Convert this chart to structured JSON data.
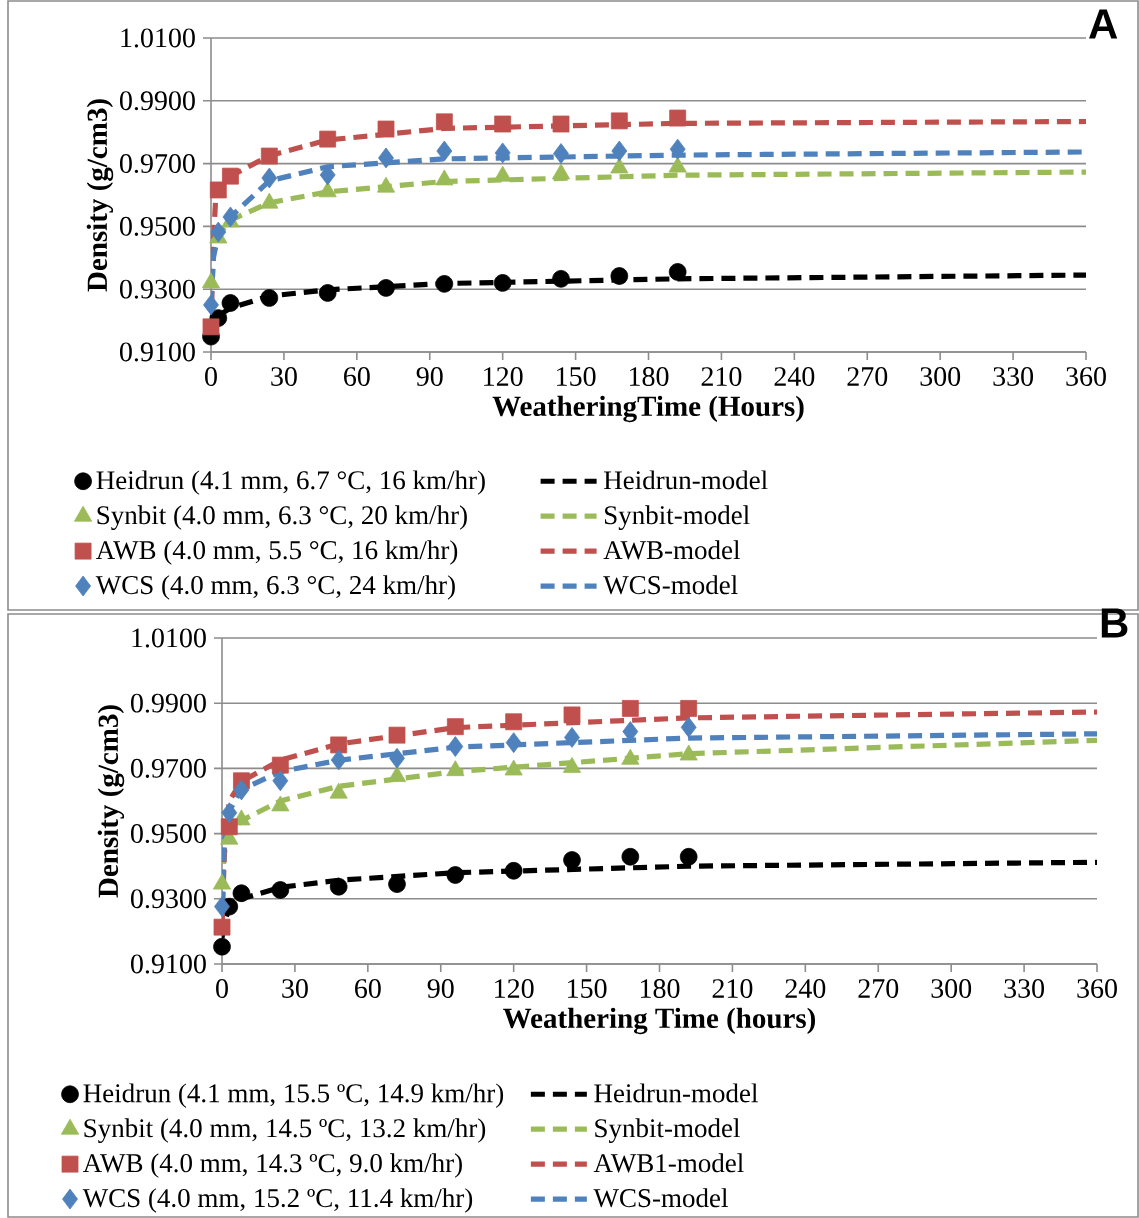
{
  "chart_data": [
    {
      "type": "scatter",
      "title": "A",
      "xlabel": "WeatheringTime (Hours)",
      "ylabel": "Density (g/cm3)",
      "xlim": [
        0,
        360
      ],
      "xticks": [
        0,
        30,
        60,
        90,
        120,
        150,
        180,
        210,
        240,
        270,
        300,
        330,
        360
      ],
      "ylim": [
        0.91,
        1.01
      ],
      "yticks": [
        {
          "value": 0.91,
          "label": "0.9100"
        },
        {
          "value": 0.93,
          "label": "0.9300"
        },
        {
          "value": 0.95,
          "label": "0.9500"
        },
        {
          "value": 0.97,
          "label": "0.9700"
        },
        {
          "value": 0.99,
          "label": "0.9900"
        },
        {
          "value": 1.01,
          "label": "1.0100"
        }
      ],
      "grid": "y",
      "legend": "bottom",
      "series": [
        {
          "name": "Heidrun (4.1 mm, 6.7 °C, 16 km/hr)",
          "marker": "circle",
          "color": "#000000",
          "x": [
            0,
            3,
            8,
            24,
            48,
            72,
            96,
            120,
            144,
            168,
            192
          ],
          "values": [
            0.9149,
            0.9208,
            0.9256,
            0.9272,
            0.9288,
            0.9304,
            0.9317,
            0.932,
            0.9333,
            0.9342,
            0.9355
          ]
        },
        {
          "name": "Heidrun-model",
          "type": "line",
          "line_style": "dashed",
          "marker": "none",
          "color": "#000000",
          "x": [
            0,
            1,
            3,
            8,
            24,
            48,
            96,
            192,
            360
          ],
          "values": [
            0.9155,
            0.918,
            0.9215,
            0.924,
            0.9278,
            0.9298,
            0.9318,
            0.9333,
            0.9345
          ]
        },
        {
          "name": "Synbit (4.0 mm, 6.3 °C, 20 km/hr)",
          "marker": "triangle",
          "color": "#9bbb59",
          "x": [
            0,
            3,
            8,
            24,
            48,
            72,
            96,
            120,
            144,
            168,
            192
          ],
          "values": [
            0.932,
            0.9463,
            0.9514,
            0.9574,
            0.961,
            0.9625,
            0.9648,
            0.966,
            0.9667,
            0.9686,
            0.9689
          ]
        },
        {
          "name": "Synbit-model",
          "type": "line",
          "line_style": "dashed",
          "marker": "none",
          "color": "#9bbb59",
          "x": [
            0,
            1,
            3,
            8,
            24,
            48,
            96,
            192,
            360
          ],
          "values": [
            0.932,
            0.941,
            0.947,
            0.952,
            0.9575,
            0.961,
            0.9643,
            0.9663,
            0.9673
          ]
        },
        {
          "name": "AWB (4.0 mm, 5.5 °C, 16 km/hr)",
          "marker": "square",
          "color": "#c0504d",
          "x": [
            0,
            3,
            8,
            24,
            48,
            72,
            96,
            120,
            144,
            168,
            192
          ],
          "values": [
            0.918,
            0.9616,
            0.966,
            0.9724,
            0.9778,
            0.981,
            0.9833,
            0.9826,
            0.9826,
            0.9836,
            0.9845
          ]
        },
        {
          "name": "AWB-model",
          "type": "line",
          "line_style": "dashed",
          "marker": "none",
          "color": "#c0504d",
          "x": [
            0,
            1,
            2,
            8,
            24,
            48,
            96,
            192,
            360
          ],
          "values": [
            0.918,
            0.945,
            0.96,
            0.966,
            0.9725,
            0.9775,
            0.9812,
            0.9828,
            0.9834
          ]
        },
        {
          "name": "WCS (4.0 mm, 6.3 °C, 24 km/hr)",
          "marker": "diamond",
          "color": "#4f81bd",
          "x": [
            0,
            3,
            8,
            24,
            48,
            72,
            96,
            120,
            144,
            168,
            192
          ],
          "values": [
            0.925,
            0.9482,
            0.953,
            0.9654,
            0.9664,
            0.9718,
            0.974,
            0.9734,
            0.9732,
            0.974,
            0.9746
          ]
        },
        {
          "name": "WCS-model",
          "type": "line",
          "line_style": "dashed",
          "marker": "none",
          "color": "#4f81bd",
          "x": [
            0,
            1,
            3,
            8,
            24,
            48,
            96,
            192,
            360
          ],
          "values": [
            0.925,
            0.94,
            0.948,
            0.953,
            0.9645,
            0.969,
            0.9715,
            0.9727,
            0.9737
          ]
        }
      ]
    },
    {
      "type": "scatter",
      "title": "B",
      "xlabel": "Weathering Time (hours)",
      "ylabel": "Density (g/cm3)",
      "xlim": [
        0,
        360
      ],
      "xticks": [
        0,
        30,
        60,
        90,
        120,
        150,
        180,
        210,
        240,
        270,
        300,
        330,
        360
      ],
      "ylim": [
        0.91,
        1.01
      ],
      "yticks": [
        {
          "value": 0.91,
          "label": "0.9100"
        },
        {
          "value": 0.93,
          "label": "0.9300"
        },
        {
          "value": 0.95,
          "label": "0.9500"
        },
        {
          "value": 0.97,
          "label": "0.9700"
        },
        {
          "value": 0.99,
          "label": "0.9900"
        },
        {
          "value": 1.01,
          "label": "1.0100"
        }
      ],
      "grid": "y",
      "legend": "bottom",
      "series": [
        {
          "name": "Heidrun (4.1 mm, 15.5 ºC, 14.9 km/hr)",
          "marker": "circle",
          "color": "#000000",
          "x": [
            0,
            3,
            8,
            24,
            48,
            72,
            96,
            120,
            144,
            168,
            192
          ],
          "values": [
            0.9153,
            0.9276,
            0.9317,
            0.9327,
            0.9337,
            0.9345,
            0.9373,
            0.9386,
            0.9419,
            0.9429,
            0.9429
          ]
        },
        {
          "name": "Heidrun-model",
          "type": "line",
          "line_style": "dashed",
          "marker": "none",
          "color": "#000000",
          "x": [
            0,
            1,
            3,
            8,
            24,
            48,
            96,
            192,
            360
          ],
          "values": [
            0.918,
            0.923,
            0.927,
            0.93,
            0.9335,
            0.9357,
            0.938,
            0.94,
            0.9412
          ]
        },
        {
          "name": "Synbit (4.0 mm, 14.5 ºC, 13.2 km/hr)",
          "marker": "triangle",
          "color": "#9bbb59",
          "x": [
            0,
            3,
            8,
            24,
            48,
            72,
            96,
            120,
            144,
            168,
            192
          ],
          "values": [
            0.9345,
            0.9483,
            0.9542,
            0.9585,
            0.9624,
            0.9675,
            0.9693,
            0.9695,
            0.9703,
            0.9728,
            0.9741
          ]
        },
        {
          "name": "Synbit-model",
          "type": "line",
          "line_style": "dashed",
          "marker": "none",
          "color": "#9bbb59",
          "x": [
            0,
            1,
            3,
            8,
            24,
            48,
            96,
            192,
            360
          ],
          "values": [
            0.934,
            0.944,
            0.95,
            0.954,
            0.96,
            0.9645,
            0.969,
            0.9745,
            0.9786
          ]
        },
        {
          "name": "AWB (4.0 mm, 14.3 ºC, 9.0 km/hr)",
          "marker": "square",
          "color": "#c0504d",
          "x": [
            0,
            3,
            8,
            24,
            48,
            72,
            96,
            120,
            144,
            168,
            192
          ],
          "values": [
            0.9213,
            0.9521,
            0.9662,
            0.971,
            0.9772,
            0.9802,
            0.9828,
            0.9843,
            0.9864,
            0.9884,
            0.9884
          ]
        },
        {
          "name": "AWB1-model",
          "type": "line",
          "line_style": "dashed",
          "marker": "none",
          "color": "#c0504d",
          "x": [
            0,
            1,
            3,
            8,
            24,
            48,
            96,
            192,
            360
          ],
          "values": [
            0.921,
            0.945,
            0.96,
            0.966,
            0.9725,
            0.9775,
            0.9825,
            0.9855,
            0.9873
          ]
        },
        {
          "name": "WCS (4.0 mm, 15.2 ºC, 11.4 km/hr)",
          "marker": "diamond",
          "color": "#4f81bd",
          "x": [
            0,
            3,
            8,
            24,
            48,
            72,
            96,
            120,
            144,
            168,
            192
          ],
          "values": [
            0.9276,
            0.9564,
            0.9634,
            0.9662,
            0.9726,
            0.9731,
            0.9767,
            0.9779,
            0.9795,
            0.9813,
            0.9826
          ]
        },
        {
          "name": "WCS-model",
          "type": "line",
          "line_style": "dashed",
          "marker": "none",
          "color": "#4f81bd",
          "x": [
            0,
            1,
            3,
            8,
            24,
            48,
            96,
            192,
            360
          ],
          "values": [
            0.928,
            0.948,
            0.957,
            0.9635,
            0.969,
            0.9725,
            0.9765,
            0.9793,
            0.9806
          ]
        }
      ]
    }
  ]
}
